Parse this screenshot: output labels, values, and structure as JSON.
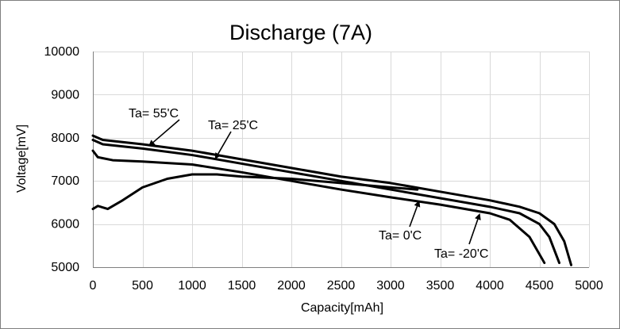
{
  "chart_data": {
    "type": "line",
    "title": "Discharge (7A)",
    "xlabel": "Capacity[mAh]",
    "ylabel": "Voltage[mV]",
    "xlim": [
      0,
      5000
    ],
    "ylim": [
      5000,
      10000
    ],
    "x_ticks": [
      0,
      500,
      1000,
      1500,
      2000,
      2500,
      3000,
      3500,
      4000,
      4500,
      5000
    ],
    "y_ticks": [
      5000,
      6000,
      7000,
      8000,
      9000,
      10000
    ],
    "grid": true,
    "legend": "none",
    "line_color": "#000000",
    "grid_color": "#d9d9d9",
    "series": [
      {
        "values": [
          [
            0,
            8050
          ],
          [
            100,
            7950
          ],
          [
            500,
            7850
          ],
          [
            1000,
            7700
          ],
          [
            1500,
            7500
          ],
          [
            2000,
            7300
          ],
          [
            2500,
            7100
          ],
          [
            3000,
            6950
          ],
          [
            3500,
            6750
          ],
          [
            4000,
            6550
          ],
          [
            4300,
            6400
          ],
          [
            4500,
            6250
          ],
          [
            4650,
            6000
          ],
          [
            4750,
            5600
          ],
          [
            4820,
            5050
          ]
        ]
      },
      {
        "values": [
          [
            0,
            7950
          ],
          [
            100,
            7850
          ],
          [
            500,
            7750
          ],
          [
            1000,
            7600
          ],
          [
            1500,
            7400
          ],
          [
            2000,
            7200
          ],
          [
            2500,
            7000
          ],
          [
            3000,
            6800
          ],
          [
            3500,
            6600
          ],
          [
            4000,
            6400
          ],
          [
            4300,
            6250
          ],
          [
            4500,
            6000
          ],
          [
            4600,
            5700
          ],
          [
            4700,
            5100
          ]
        ]
      },
      {
        "values": [
          [
            0,
            7700
          ],
          [
            50,
            7550
          ],
          [
            200,
            7480
          ],
          [
            500,
            7450
          ],
          [
            1000,
            7380
          ],
          [
            1500,
            7200
          ],
          [
            2000,
            7000
          ],
          [
            2500,
            6800
          ],
          [
            3000,
            6620
          ],
          [
            3500,
            6450
          ],
          [
            4000,
            6250
          ],
          [
            4200,
            6100
          ],
          [
            4400,
            5700
          ],
          [
            4550,
            5100
          ]
        ]
      },
      {
        "values": [
          [
            0,
            6350
          ],
          [
            50,
            6420
          ],
          [
            150,
            6350
          ],
          [
            300,
            6550
          ],
          [
            500,
            6850
          ],
          [
            750,
            7050
          ],
          [
            1000,
            7150
          ],
          [
            1250,
            7150
          ],
          [
            1500,
            7100
          ],
          [
            2000,
            7050
          ],
          [
            2500,
            6950
          ],
          [
            3000,
            6850
          ],
          [
            3270,
            6800
          ]
        ]
      }
    ],
    "annotations": [
      {
        "label": "Ta= 55'C",
        "arrow_to": [
          560,
          7800
        ]
      },
      {
        "label": "Ta= 25'C",
        "arrow_to": [
          1230,
          7500
        ]
      },
      {
        "label": "Ta= 0'C",
        "arrow_to": [
          3290,
          6550
        ]
      },
      {
        "label": "Ta= -20'C",
        "arrow_to": [
          3900,
          6250
        ]
      }
    ]
  }
}
